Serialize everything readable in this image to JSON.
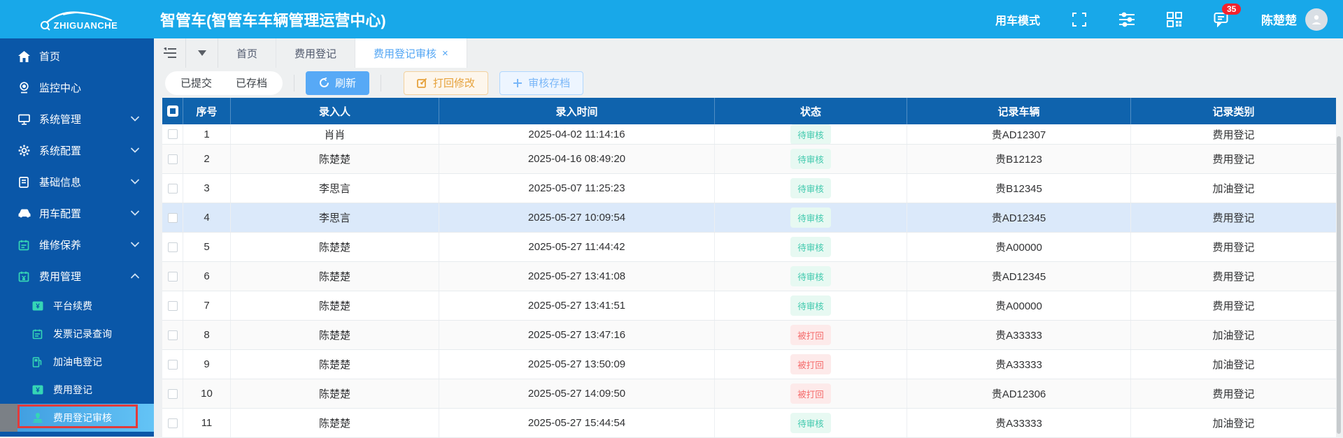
{
  "topbar": {
    "logo_text": "ZHIGUANCHE",
    "title": "智管车(智管车车辆管理运营中心)",
    "mode_label": "用车模式",
    "badge_count": "35",
    "user_name": "陈楚楚"
  },
  "sidebar": {
    "items": [
      {
        "label": "首页",
        "icon": "home-icon",
        "chevron": null,
        "tint": "white"
      },
      {
        "label": "监控中心",
        "icon": "monitor-icon",
        "chevron": null,
        "tint": "white"
      },
      {
        "label": "系统管理",
        "icon": "system-icon",
        "chevron": "down",
        "tint": "white"
      },
      {
        "label": "系统配置",
        "icon": "gear-icon",
        "chevron": "down",
        "tint": "white"
      },
      {
        "label": "基础信息",
        "icon": "book-icon",
        "chevron": "down",
        "tint": "white"
      },
      {
        "label": "用车配置",
        "icon": "car-icon",
        "chevron": "down",
        "tint": "white"
      },
      {
        "label": "维修保养",
        "icon": "maintenance-icon",
        "chevron": "down",
        "tint": "teal"
      },
      {
        "label": "费用管理",
        "icon": "expense-icon",
        "chevron": "up",
        "tint": "teal"
      }
    ],
    "submenu": [
      {
        "label": "平台续费",
        "icon": "renew-icon"
      },
      {
        "label": "发票记录查询",
        "icon": "invoice-icon"
      },
      {
        "label": "加油电登记",
        "icon": "fuel-icon"
      },
      {
        "label": "费用登记",
        "icon": "register-icon"
      },
      {
        "label": "费用登记审核",
        "icon": "audit-icon",
        "active": true,
        "annotated": true
      }
    ]
  },
  "tabbar": {
    "tabs": [
      {
        "label": "首页"
      },
      {
        "label": "费用登记"
      },
      {
        "label": "费用登记审核",
        "active": true,
        "closable": true
      }
    ]
  },
  "toolbar": {
    "filters": [
      "已提交",
      "已存档"
    ],
    "refresh_label": "刷新",
    "reject_label": "打回修改",
    "archive_label": "审核存档"
  },
  "table": {
    "columns": [
      "序号",
      "录入人",
      "录入时间",
      "状态",
      "记录车辆",
      "记录类别"
    ],
    "rows": [
      {
        "no": "1",
        "name": "肖肖",
        "time": "2025-04-02 11:14:16",
        "status": "待审核",
        "vehicle": "贵AD12307",
        "category": "费用登记"
      },
      {
        "no": "2",
        "name": "陈楚楚",
        "time": "2025-04-16 08:49:20",
        "status": "待审核",
        "vehicle": "贵B12123",
        "category": "费用登记"
      },
      {
        "no": "3",
        "name": "李思言",
        "time": "2025-05-07 11:25:23",
        "status": "待审核",
        "vehicle": "贵B12345",
        "category": "加油登记"
      },
      {
        "no": "4",
        "name": "李思言",
        "time": "2025-05-27 10:09:54",
        "status": "待审核",
        "vehicle": "贵AD12345",
        "category": "费用登记",
        "highlighted": true
      },
      {
        "no": "5",
        "name": "陈楚楚",
        "time": "2025-05-27 11:44:42",
        "status": "待审核",
        "vehicle": "贵A00000",
        "category": "费用登记"
      },
      {
        "no": "6",
        "name": "陈楚楚",
        "time": "2025-05-27 13:41:08",
        "status": "待审核",
        "vehicle": "贵AD12345",
        "category": "费用登记"
      },
      {
        "no": "7",
        "name": "陈楚楚",
        "time": "2025-05-27 13:41:51",
        "status": "待审核",
        "vehicle": "贵A00000",
        "category": "费用登记"
      },
      {
        "no": "8",
        "name": "陈楚楚",
        "time": "2025-05-27 13:47:16",
        "status": "被打回",
        "vehicle": "贵A33333",
        "category": "加油登记"
      },
      {
        "no": "9",
        "name": "陈楚楚",
        "time": "2025-05-27 13:50:09",
        "status": "被打回",
        "vehicle": "贵A33333",
        "category": "加油登记"
      },
      {
        "no": "10",
        "name": "陈楚楚",
        "time": "2025-05-27 14:09:50",
        "status": "被打回",
        "vehicle": "贵AD12306",
        "category": "费用登记"
      },
      {
        "no": "11",
        "name": "陈楚楚",
        "time": "2025-05-27 15:44:54",
        "status": "待审核",
        "vehicle": "贵A33333",
        "category": "加油登记"
      }
    ]
  },
  "status_styles": {
    "待审核": {
      "bg": "#e7f9f2",
      "fg": "#3fc9ad"
    },
    "被打回": {
      "bg": "#fdeaea",
      "fg": "#f56c6c"
    }
  },
  "colors": {
    "topbar_blue": "#18a8e9",
    "sidebar_blue": "#0a57a8",
    "table_header_blue": "#0f63ad",
    "refresh_blue": "#57a9f6",
    "warning_orange": "#e6a23c",
    "badge_red": "#f5222d",
    "selected_row": "#dbe9fa",
    "annotation_red": "#e23b3b",
    "teal_icon": "#35d6b5"
  }
}
